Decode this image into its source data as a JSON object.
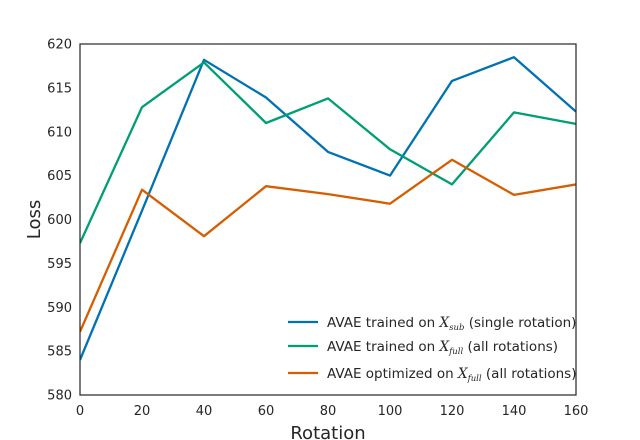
{
  "chart_data": {
    "type": "line",
    "xlabel": "Rotation",
    "ylabel": "Loss",
    "xlim": [
      0,
      160
    ],
    "ylim": [
      580,
      620
    ],
    "xticks": [
      0,
      20,
      40,
      60,
      80,
      100,
      120,
      140,
      160
    ],
    "yticks": [
      580,
      585,
      590,
      595,
      600,
      605,
      610,
      615,
      620
    ],
    "grid": false,
    "legend_position": "lower-right",
    "x": [
      0,
      20,
      40,
      60,
      80,
      100,
      120,
      140,
      160
    ],
    "series": [
      {
        "name": "AVAE trained on X_sub (single rotation)",
        "legend_prefix": "AVAE trained on ",
        "legend_var": "X",
        "legend_sub": "sub",
        "legend_suffix": " (single rotation)",
        "color": "#0072b2",
        "values": [
          584.0,
          601.0,
          618.2,
          613.9,
          607.7,
          605.0,
          615.8,
          618.5,
          612.3
        ]
      },
      {
        "name": "AVAE trained on X_full (all rotations)",
        "legend_prefix": "AVAE trained on ",
        "legend_var": "X",
        "legend_sub": "full",
        "legend_suffix": " (all rotations)",
        "color": "#009e73",
        "values": [
          597.3,
          612.8,
          617.9,
          611.0,
          613.8,
          608.0,
          604.0,
          612.2,
          610.9
        ]
      },
      {
        "name": "AVAE optimized on X_full (all rotations)",
        "legend_prefix": "AVAE optimized on ",
        "legend_var": "X",
        "legend_sub": "full",
        "legend_suffix": " (all rotations)",
        "color": "#d55e00",
        "values": [
          587.2,
          603.4,
          598.1,
          603.8,
          602.9,
          601.8,
          606.8,
          602.8,
          604.0
        ]
      }
    ]
  }
}
